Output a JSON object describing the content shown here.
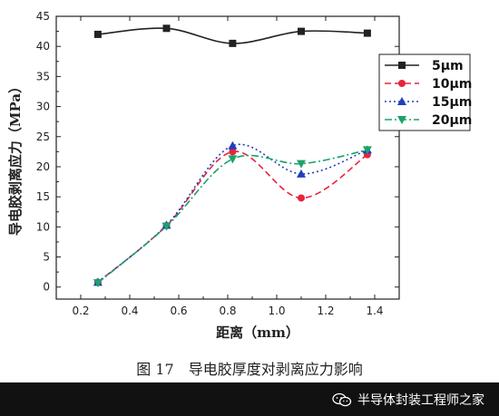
{
  "chart_data": {
    "type": "line",
    "xlabel": "距离（mm）",
    "ylabel": "导电胶剥离应力（MPa）",
    "xlim": [
      0.1,
      1.5
    ],
    "ylim": [
      -2,
      45
    ],
    "xticks": [
      0.2,
      0.4,
      0.6,
      0.8,
      1.0,
      1.2,
      1.4
    ],
    "yticks": [
      0,
      5,
      10,
      15,
      20,
      25,
      30,
      35,
      40,
      45
    ],
    "grid": false,
    "legend_position": "right",
    "series": [
      {
        "name": "5μm",
        "color": "#222222",
        "marker": "square",
        "dash": "solid",
        "x": [
          0.27,
          0.55,
          0.82,
          1.1,
          1.37
        ],
        "y": [
          42.0,
          43.0,
          40.5,
          42.5,
          42.2
        ]
      },
      {
        "name": "10μm",
        "color": "#e8243c",
        "marker": "circle",
        "dash": "dashed",
        "x": [
          0.27,
          0.55,
          0.82,
          1.1,
          1.37
        ],
        "y": [
          0.8,
          10.2,
          22.5,
          14.8,
          22.0
        ]
      },
      {
        "name": "15μm",
        "color": "#1f3fbf",
        "marker": "triangle-up",
        "dash": "dotted",
        "x": [
          0.27,
          0.55,
          0.82,
          1.1,
          1.37
        ],
        "y": [
          0.8,
          10.3,
          23.5,
          18.8,
          22.8
        ]
      },
      {
        "name": "20μm",
        "color": "#1aa36a",
        "marker": "triangle-down",
        "dash": "dashdot",
        "x": [
          0.27,
          0.55,
          0.82,
          1.1,
          1.37
        ],
        "y": [
          0.7,
          10.1,
          21.3,
          20.5,
          22.8
        ]
      }
    ]
  },
  "caption": "图 17　导电胶厚度对剥离应力影响",
  "watermark": {
    "text": "半导体封装工程师之家",
    "icon": "wechat-icon"
  }
}
